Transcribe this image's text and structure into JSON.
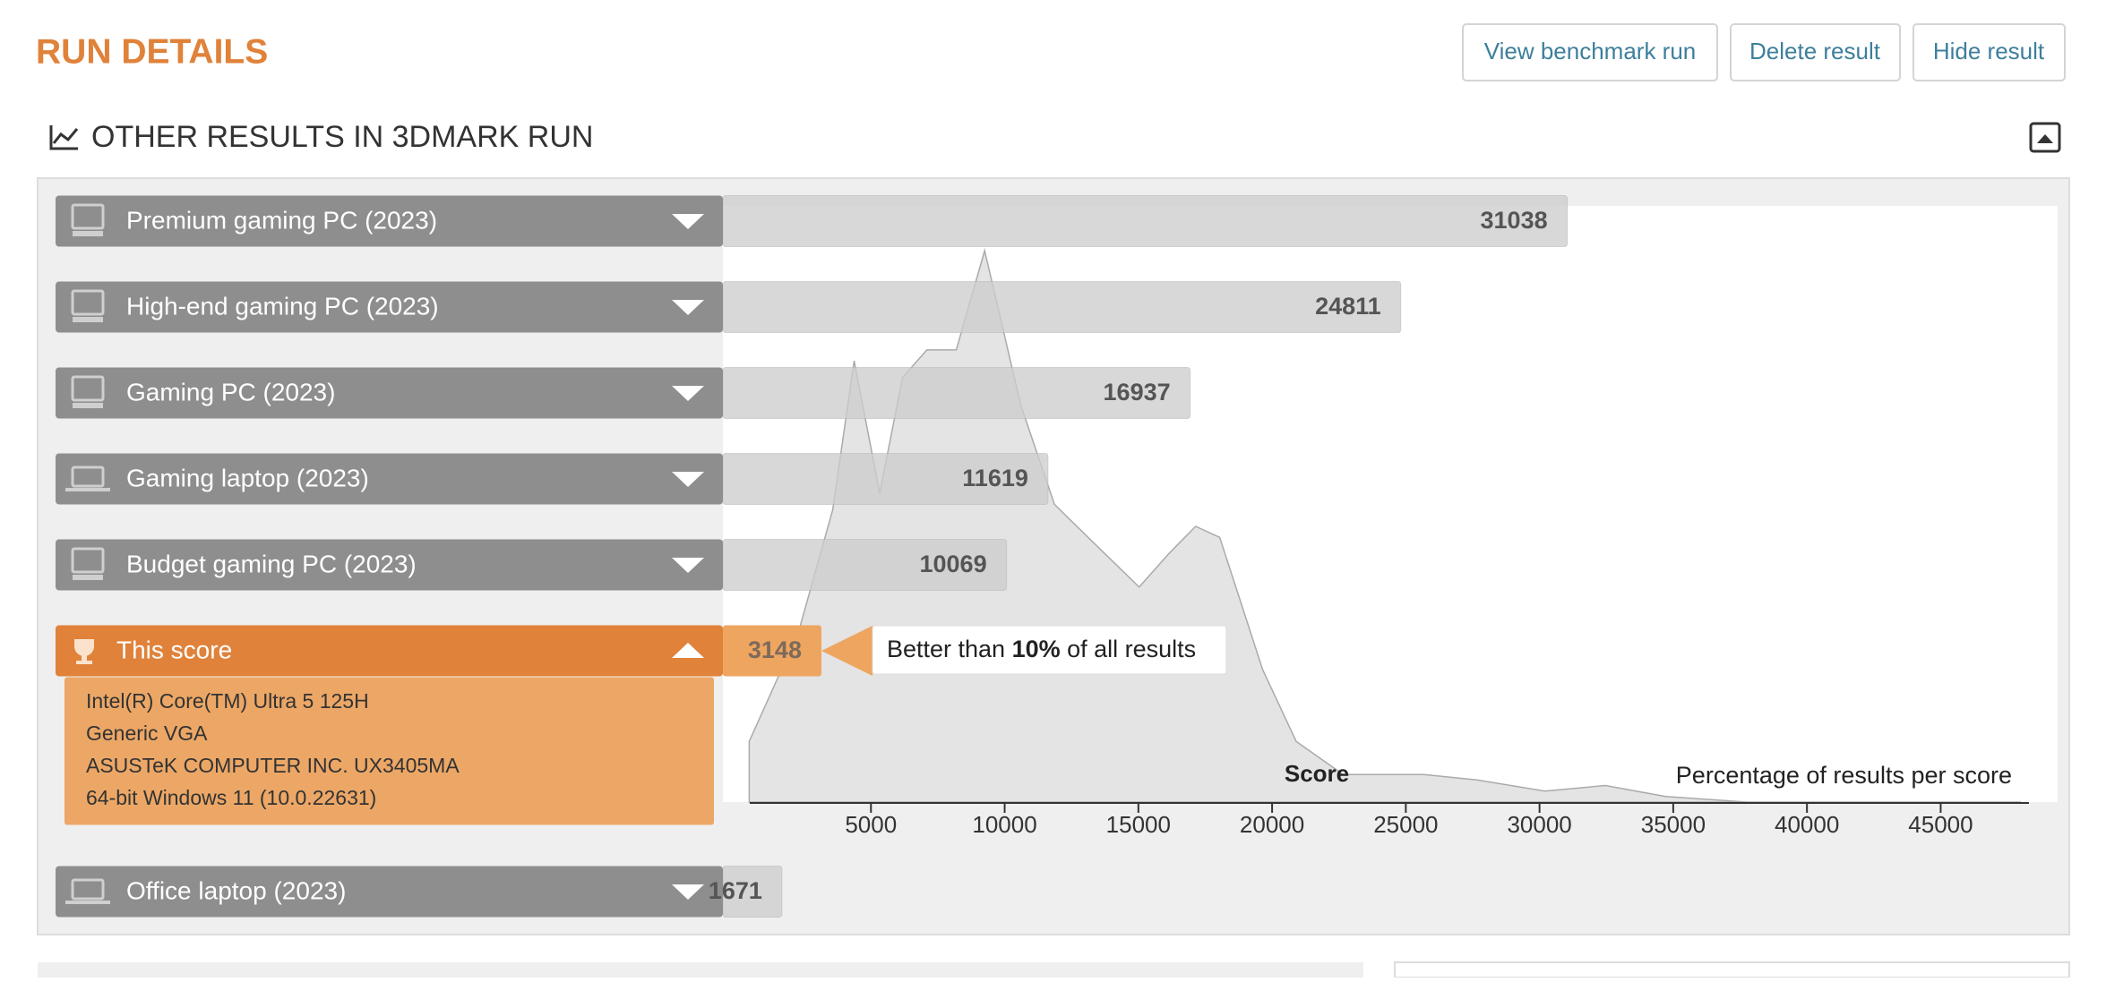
{
  "header": {
    "title": "RUN DETAILS",
    "buttons": [
      "View benchmark run",
      "Delete result",
      "Hide result"
    ]
  },
  "section": {
    "title": "OTHER RESULTS IN 3DMARK RUN"
  },
  "benchmarks": [
    {
      "name": "Premium gaming PC (2023)",
      "score": 31038,
      "icon": "desktop"
    },
    {
      "name": "High-end gaming PC (2023)",
      "score": 24811,
      "icon": "desktop"
    },
    {
      "name": "Gaming PC (2023)",
      "score": 16937,
      "icon": "desktop"
    },
    {
      "name": "Gaming laptop (2023)",
      "score": 11619,
      "icon": "laptop"
    },
    {
      "name": "Budget gaming PC (2023)",
      "score": 10069,
      "icon": "desktop"
    },
    {
      "name": "This score",
      "score": 3148,
      "icon": "trophy",
      "highlight": true,
      "details": [
        "Intel(R) Core(TM) Ultra 5 125H",
        "Generic VGA",
        "ASUSTeK COMPUTER INC. UX3405MA",
        "64-bit Windows 11 (10.0.22631)"
      ]
    },
    {
      "name": "Office laptop (2023)",
      "score": 1671,
      "icon": "laptop"
    }
  ],
  "percentile": {
    "before": "Better than ",
    "value": "10%",
    "after": " of all results"
  },
  "chart_data": {
    "type": "area",
    "x_label": "Score",
    "y_label": "Percentage of results per score",
    "x": [
      450,
      2300,
      3570,
      4370,
      5330,
      6180,
      7090,
      8190,
      9250,
      10600,
      11860,
      13120,
      15030,
      16130,
      17140,
      18040,
      19650,
      20900,
      22660,
      25680,
      27690,
      30200,
      32460,
      34720,
      37740,
      48000
    ],
    "values": [
      11,
      31,
      53,
      80,
      56,
      77,
      82,
      82,
      100,
      72,
      54,
      48,
      39,
      45,
      50,
      48,
      24,
      11,
      5,
      5,
      4,
      2,
      3,
      1,
      0,
      0
    ],
    "xlim": [
      0,
      48000
    ],
    "ylim": [
      0,
      100
    ],
    "xticks": [
      5000,
      10000,
      15000,
      20000,
      25000,
      30000,
      35000,
      40000,
      45000
    ],
    "color": "#e4e4e4"
  }
}
